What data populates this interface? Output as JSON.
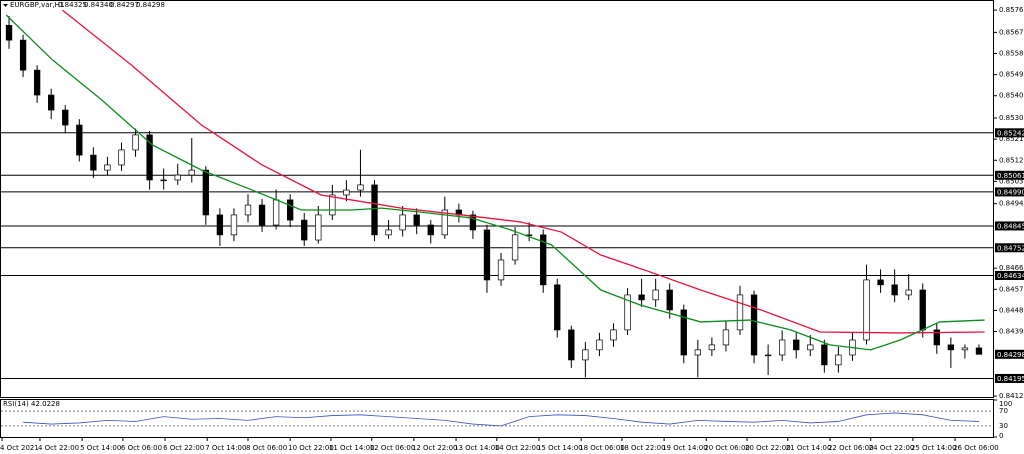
{
  "chart_data": {
    "type": "candlestick",
    "header": {
      "symbol": "EURGBP,var,H1",
      "ohlc": [
        "0.84325",
        "0.84340",
        "0.84297",
        "0.84298"
      ]
    },
    "color": "#000000",
    "open": [
      0.857,
      0.85637,
      0.85509,
      0.85403,
      0.85339,
      0.85275,
      0.85147,
      0.85083,
      0.85105,
      0.85169,
      0.85233,
      0.85041,
      0.85041,
      0.85062,
      0.85083,
      0.84892,
      0.84807,
      0.84892,
      0.84934,
      0.84849,
      0.84956,
      0.8487,
      0.84785,
      0.84892,
      0.84977,
      0.84998,
      0.8502,
      0.84807,
      0.84828,
      0.84892,
      0.84849,
      0.84807,
      0.84913,
      0.84892,
      0.84828,
      0.84615,
      0.847,
      0.84807,
      0.84807,
      0.84594,
      0.84402,
      0.84274,
      0.84317,
      0.84359,
      0.84402,
      0.84551,
      0.8453,
      0.84572,
      0.84487,
      0.84295,
      0.84317,
      0.84338,
      0.84402,
      0.84551,
      0.84295,
      0.84295,
      0.84359,
      0.84317,
      0.84338,
      0.84253,
      0.84295,
      0.84359,
      0.84615,
      0.84594,
      0.84551,
      0.84572,
      0.84402,
      0.84338,
      0.84317,
      0.84325
    ],
    "high": [
      0.8574,
      0.8566,
      0.8553,
      0.8543,
      0.8536,
      0.853,
      0.8518,
      0.8514,
      0.852,
      0.8526,
      0.8525,
      0.8509,
      0.8511,
      0.8522,
      0.851,
      0.8492,
      0.8492,
      0.8498,
      0.8496,
      0.85,
      0.8498,
      0.849,
      0.8493,
      0.8502,
      0.8504,
      0.8517,
      0.8504,
      0.8487,
      0.8493,
      0.8492,
      0.8487,
      0.8497,
      0.8494,
      0.8491,
      0.8485,
      0.8473,
      0.8484,
      0.8486,
      0.8483,
      0.8462,
      0.8442,
      0.8435,
      0.8439,
      0.8443,
      0.8458,
      0.8462,
      0.8462,
      0.846,
      0.8451,
      0.8436,
      0.8437,
      0.8444,
      0.8459,
      0.8457,
      0.8434,
      0.844,
      0.8439,
      0.8438,
      0.8436,
      0.8433,
      0.8439,
      0.8468,
      0.8466,
      0.8466,
      0.8464,
      0.846,
      0.8443,
      0.8437,
      0.8434,
      0.8434
    ],
    "low": [
      0.856,
      0.8548,
      0.8537,
      0.853,
      0.8524,
      0.8512,
      0.8505,
      0.8506,
      0.8508,
      0.8514,
      0.85,
      0.85,
      0.8502,
      0.8503,
      0.8485,
      0.8476,
      0.8478,
      0.8486,
      0.8482,
      0.8483,
      0.8484,
      0.8476,
      0.8477,
      0.8487,
      0.8495,
      0.8497,
      0.8478,
      0.8479,
      0.848,
      0.8481,
      0.8477,
      0.8479,
      0.8486,
      0.8479,
      0.8456,
      0.8459,
      0.8468,
      0.8478,
      0.8456,
      0.8437,
      0.8424,
      0.842,
      0.8429,
      0.8433,
      0.8438,
      0.845,
      0.845,
      0.8445,
      0.8426,
      0.842,
      0.8429,
      0.8431,
      0.8438,
      0.8426,
      0.8421,
      0.8427,
      0.8428,
      0.8429,
      0.8422,
      0.8422,
      0.8427,
      0.8434,
      0.8456,
      0.8452,
      0.8453,
      0.8437,
      0.843,
      0.8424,
      0.8428,
      0.84297
    ],
    "close": [
      0.85637,
      0.85509,
      0.85403,
      0.85339,
      0.85275,
      0.85147,
      0.85083,
      0.85105,
      0.85169,
      0.85233,
      0.85041,
      0.85041,
      0.85062,
      0.85083,
      0.84892,
      0.84807,
      0.84892,
      0.84934,
      0.84849,
      0.84956,
      0.8487,
      0.84785,
      0.84892,
      0.84977,
      0.84998,
      0.8502,
      0.84807,
      0.84828,
      0.84892,
      0.84849,
      0.84807,
      0.84913,
      0.84892,
      0.84828,
      0.84615,
      0.847,
      0.84807,
      0.84807,
      0.84594,
      0.84402,
      0.84274,
      0.84317,
      0.84359,
      0.84402,
      0.84551,
      0.8453,
      0.84572,
      0.84487,
      0.84295,
      0.84317,
      0.84338,
      0.84402,
      0.84551,
      0.84295,
      0.84295,
      0.84359,
      0.84317,
      0.84338,
      0.84253,
      0.84295,
      0.84359,
      0.84615,
      0.84594,
      0.84551,
      0.84572,
      0.84402,
      0.84338,
      0.84317,
      0.84325,
      0.84298
    ],
    "xlim": [
      0.5,
      70.5
    ],
    "ylim": [
      0.84116,
      0.85808
    ],
    "yticks": [
      0.85765,
      {
        "value": 0.8567,
        "label": "0.85670"
      },
      {
        "value": 0.8558,
        "label": "0.85580"
      },
      {
        "value": 0.8549,
        "label": "0.85490"
      },
      {
        "value": 0.854,
        "label": "0.85400"
      },
      0.85305,
      0.85215,
      0.85125,
      0.85035,
      {
        "value": 0.8494,
        "label": "0.84940"
      },
      0.84665,
      0.84575,
      0.84485,
      0.84395,
      {
        "value": 0.8412,
        "label": "0.84120"
      }
    ],
    "xticks": [
      {
        "value": 0.5,
        "label": "4 Oct 2021"
      },
      {
        "value": 3.2,
        "label": "4 Oct 22:00"
      },
      {
        "value": 6.2,
        "label": "5 Oct 14:00"
      },
      {
        "value": 9.1,
        "label": "6 Oct 06:00"
      },
      {
        "value": 12.1,
        "label": "6 Oct 22:00"
      },
      {
        "value": 15.1,
        "label": "7 Oct 14:00"
      },
      {
        "value": 18,
        "label": "8 Oct 06:00"
      },
      {
        "value": 21,
        "label": "10 Oct 22:00"
      },
      {
        "value": 23.9,
        "label": "11 Oct 14:00"
      },
      {
        "value": 26.8,
        "label": "12 Oct 06:00"
      },
      {
        "value": 29.8,
        "label": "12 Oct 22:00"
      },
      {
        "value": 32.8,
        "label": "13 Oct 14:00"
      },
      {
        "value": 35.7,
        "label": "14 Oct 22:00"
      },
      {
        "value": 38.7,
        "label": "15 Oct 14:00"
      },
      {
        "value": 41.7,
        "label": "18 Oct 06:00"
      },
      {
        "value": 44.6,
        "label": "18 Oct 22:00"
      },
      {
        "value": 47.6,
        "label": "19 Oct 14:00"
      },
      {
        "value": 50.6,
        "label": "20 Oct 06:00"
      },
      {
        "value": 53.5,
        "label": "20 Oct 22:00"
      },
      {
        "value": 56.4,
        "label": "21 Oct 14:00"
      },
      {
        "value": 59.4,
        "label": "22 Oct 06:00"
      },
      {
        "value": 62.3,
        "label": "24 Oct 22:00"
      },
      {
        "value": 65.3,
        "label": "25 Oct 14:00"
      },
      {
        "value": 68.3,
        "label": "26 Oct 06:00"
      }
    ],
    "moving_averages": [
      {
        "color": "#e8123c",
        "x": [
          4.8,
          9.7,
          14.7,
          19,
          23.2,
          28.9,
          33.2,
          37.4,
          40.3,
          43.1,
          46.6,
          50.2,
          54.5,
          58.7,
          64.4,
          70.4
        ],
        "values": [
          0.85765,
          0.85531,
          0.85275,
          0.85105,
          0.84977,
          0.84921,
          0.84892,
          0.84862,
          0.84819,
          0.84721,
          0.84649,
          0.84572,
          0.84487,
          0.84393,
          0.84389,
          0.84393
        ]
      },
      {
        "color": "#0c8c1c",
        "x": [
          0.8,
          4.1,
          7.6,
          11.2,
          14.7,
          18.3,
          21.8,
          25.4,
          27.5,
          30.3,
          33.9,
          36.7,
          39.6,
          43.1,
          45.9,
          50.2,
          53.7,
          56.6,
          59.4,
          62.3,
          64.4,
          67.2,
          70.4
        ],
        "values": [
          0.85744,
          0.85552,
          0.85382,
          0.8519,
          0.85083,
          0.84998,
          0.84913,
          0.84913,
          0.84921,
          0.84904,
          0.84879,
          0.84828,
          0.84764,
          0.84572,
          0.84508,
          0.84436,
          0.84444,
          0.84402,
          0.84338,
          0.84317,
          0.84359,
          0.84436,
          0.84444
        ]
      }
    ],
    "levels": [
      0.85242,
      0.85061,
      {
        "value": 0.8499,
        "label": "0.84990"
      },
      0.84845,
      0.84752,
      0.84634,
      0.84195
    ],
    "current_price": 0.84298,
    "rsi": {
      "label": "RSI(14)",
      "color": "#3a4fbf",
      "x": [
        2,
        4,
        6,
        8,
        10,
        12,
        14,
        16,
        18,
        20,
        22,
        24,
        26,
        28,
        30,
        32,
        34,
        36,
        38,
        40,
        42,
        44,
        46,
        48,
        50,
        52,
        54,
        56,
        58,
        60,
        62,
        64,
        66,
        68,
        70
      ],
      "values": [
        40,
        35,
        38,
        45,
        42,
        55,
        48,
        50,
        45,
        55,
        52,
        58,
        60,
        55,
        50,
        45,
        35,
        30,
        55,
        60,
        58,
        50,
        40,
        35,
        45,
        42,
        40,
        45,
        38,
        42,
        60,
        65,
        60,
        45,
        42.0228
      ],
      "ylim": [
        0,
        100
      ],
      "yticks": [
        100,
        70,
        30,
        0
      ]
    }
  }
}
